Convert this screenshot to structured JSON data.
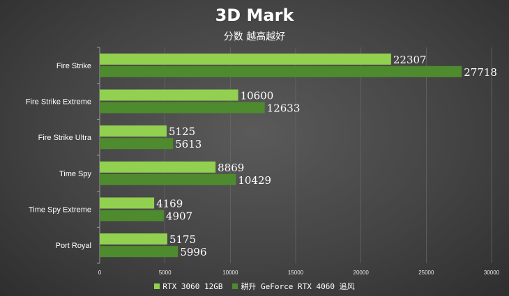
{
  "chart_data": {
    "type": "bar",
    "orientation": "horizontal",
    "title": "3D Mark",
    "subtitle": "分数  越高越好",
    "categories": [
      "Fire Strike",
      "Fire Strike Extreme",
      "Fire Strike Ultra",
      "Time Spy",
      "Time Spy Extreme",
      "Port Royal"
    ],
    "series": [
      {
        "name": "RTX 3060 12GB",
        "color": "#92d050",
        "values": [
          22307,
          10600,
          5125,
          8869,
          4169,
          5175
        ]
      },
      {
        "name": "耕升 GeForce RTX 4060 追风",
        "color": "#4e8a2e",
        "values": [
          27718,
          12633,
          5613,
          10429,
          4907,
          5996
        ]
      }
    ],
    "xlim": [
      0,
      30000
    ],
    "xticks": [
      0,
      5000,
      10000,
      15000,
      20000,
      25000,
      30000
    ],
    "grid": true,
    "legend_position": "bottom"
  }
}
